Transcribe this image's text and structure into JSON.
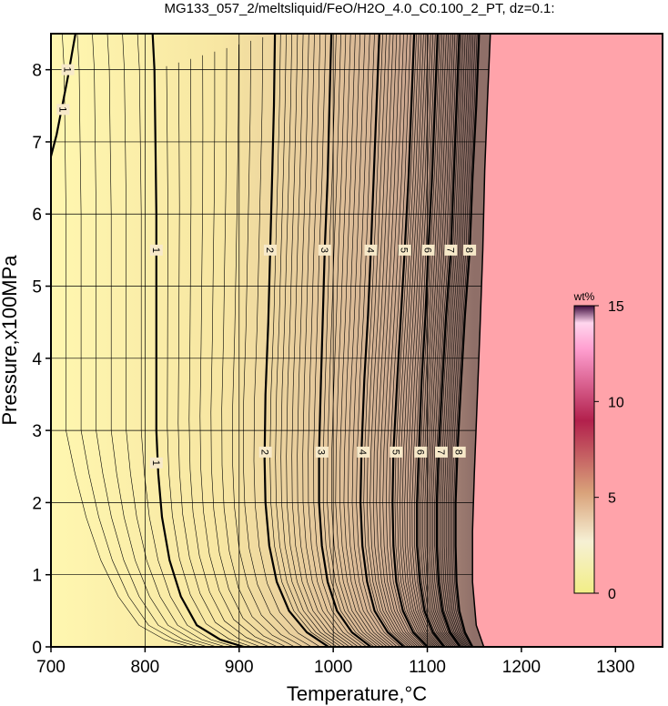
{
  "chart_data": {
    "type": "heatmap",
    "title": "MG133_057_2/meltsliquid/FeO/H2O_4.0_C0.100_2_PT, dz=0.1:",
    "xlabel": "Temperature,°C",
    "ylabel": "Pressure,x100MPa",
    "xlim": [
      700,
      1350
    ],
    "ylim": [
      0,
      8.5
    ],
    "x_ticks": [
      700,
      800,
      900,
      1000,
      1100,
      1200,
      1300
    ],
    "y_ticks": [
      0,
      1,
      2,
      3,
      4,
      5,
      6,
      7,
      8
    ],
    "grid": true,
    "contour_interval": 0.1,
    "major_contours": [
      {
        "level": "1",
        "label_positions": [
          [
            812,
            5.5
          ],
          [
            812,
            2.55
          ]
        ],
        "points": [
          [
            905,
            0
          ],
          [
            880,
            0.1
          ],
          [
            855,
            0.3
          ],
          [
            838,
            0.7
          ],
          [
            826,
            1.2
          ],
          [
            818,
            1.8
          ],
          [
            814,
            2.4
          ],
          [
            812,
            3.0
          ],
          [
            812,
            4.0
          ],
          [
            812,
            5.0
          ],
          [
            812,
            6.0
          ],
          [
            811,
            7.0
          ],
          [
            810,
            8.0
          ],
          [
            808,
            8.5
          ]
        ]
      },
      {
        "level": "2",
        "label_positions": [
          [
            933,
            5.5
          ],
          [
            928,
            2.7
          ]
        ],
        "points": [
          [
            995,
            0
          ],
          [
            972,
            0.2
          ],
          [
            953,
            0.5
          ],
          [
            940,
            0.9
          ],
          [
            932,
            1.4
          ],
          [
            928,
            2.0
          ],
          [
            927,
            2.6
          ],
          [
            928,
            3.5
          ],
          [
            931,
            4.5
          ],
          [
            933,
            5.5
          ],
          [
            935,
            6.5
          ],
          [
            937,
            7.5
          ],
          [
            938,
            8.5
          ]
        ]
      },
      {
        "level": "3",
        "label_positions": [
          [
            991,
            5.5
          ],
          [
            988,
            2.7
          ]
        ],
        "points": [
          [
            1040,
            0
          ],
          [
            1020,
            0.2
          ],
          [
            1004,
            0.5
          ],
          [
            994,
            0.9
          ],
          [
            988,
            1.4
          ],
          [
            985,
            2.0
          ],
          [
            985,
            2.7
          ],
          [
            987,
            3.7
          ],
          [
            989,
            4.6
          ],
          [
            991,
            5.5
          ],
          [
            994,
            6.5
          ],
          [
            996,
            7.5
          ],
          [
            998,
            8.5
          ]
        ]
      },
      {
        "level": "4",
        "label_positions": [
          [
            1040,
            5.5
          ],
          [
            1032,
            2.7
          ]
        ],
        "points": [
          [
            1075,
            0
          ],
          [
            1058,
            0.2
          ],
          [
            1044,
            0.5
          ],
          [
            1036,
            0.9
          ],
          [
            1031,
            1.4
          ],
          [
            1029,
            2.0
          ],
          [
            1030,
            2.7
          ],
          [
            1033,
            3.7
          ],
          [
            1037,
            4.6
          ],
          [
            1040,
            5.5
          ],
          [
            1043,
            6.5
          ],
          [
            1046,
            7.5
          ],
          [
            1049,
            8.5
          ]
        ]
      },
      {
        "level": "5",
        "label_positions": [
          [
            1076,
            5.5
          ],
          [
            1067,
            2.7
          ]
        ],
        "points": [
          [
            1100,
            0
          ],
          [
            1085,
            0.2
          ],
          [
            1074,
            0.5
          ],
          [
            1067,
            0.9
          ],
          [
            1064,
            1.4
          ],
          [
            1063,
            2.0
          ],
          [
            1064,
            2.7
          ],
          [
            1068,
            3.7
          ],
          [
            1072,
            4.6
          ],
          [
            1076,
            5.5
          ],
          [
            1080,
            6.5
          ],
          [
            1083,
            7.5
          ],
          [
            1086,
            8.5
          ]
        ]
      },
      {
        "level": "6",
        "label_positions": [
          [
            1101,
            5.5
          ],
          [
            1093,
            2.7
          ]
        ],
        "points": [
          [
            1118,
            0
          ],
          [
            1106,
            0.2
          ],
          [
            1097,
            0.5
          ],
          [
            1092,
            0.9
          ],
          [
            1089,
            1.4
          ],
          [
            1089,
            2.0
          ],
          [
            1091,
            2.7
          ],
          [
            1094,
            3.7
          ],
          [
            1098,
            4.6
          ],
          [
            1101,
            5.5
          ],
          [
            1105,
            6.5
          ],
          [
            1108,
            7.5
          ],
          [
            1111,
            8.5
          ]
        ]
      },
      {
        "level": "7",
        "label_positions": [
          [
            1125,
            5.5
          ],
          [
            1115,
            2.7
          ]
        ],
        "points": [
          [
            1135,
            0
          ],
          [
            1124,
            0.2
          ],
          [
            1116,
            0.5
          ],
          [
            1112,
            0.9
          ],
          [
            1110,
            1.4
          ],
          [
            1110,
            2.0
          ],
          [
            1112,
            2.7
          ],
          [
            1116,
            3.7
          ],
          [
            1120,
            4.6
          ],
          [
            1125,
            5.5
          ],
          [
            1128,
            6.5
          ],
          [
            1131,
            7.5
          ],
          [
            1134,
            8.5
          ]
        ]
      },
      {
        "level": "8",
        "label_positions": [
          [
            1145,
            5.5
          ],
          [
            1134,
            2.7
          ]
        ],
        "points": [
          [
            1148,
            0
          ],
          [
            1140,
            0.2
          ],
          [
            1134,
            0.5
          ],
          [
            1131,
            0.9
          ],
          [
            1130,
            1.4
          ],
          [
            1130,
            2.0
          ],
          [
            1132,
            2.7
          ],
          [
            1136,
            3.7
          ],
          [
            1140,
            4.6
          ],
          [
            1145,
            5.5
          ],
          [
            1148,
            6.5
          ],
          [
            1152,
            7.5
          ],
          [
            1155,
            8.5
          ]
        ]
      }
    ],
    "left_contour": {
      "level": "1",
      "label_positions": [
        [
          718,
          8.0
        ],
        [
          713,
          7.45
        ]
      ],
      "points": [
        [
          700,
          6.8
        ],
        [
          706,
          7.1
        ],
        [
          712,
          7.5
        ],
        [
          718,
          7.9
        ],
        [
          722,
          8.2
        ],
        [
          726,
          8.5
        ]
      ]
    },
    "liquidus_boundary": [
      [
        1160,
        0
      ],
      [
        1152,
        0.3
      ],
      [
        1148,
        0.9
      ],
      [
        1148,
        1.6
      ],
      [
        1150,
        2.4
      ],
      [
        1153,
        3.4
      ],
      [
        1156,
        4.4
      ],
      [
        1159,
        5.5
      ],
      [
        1161,
        6.6
      ],
      [
        1164,
        7.6
      ],
      [
        1167,
        8.5
      ]
    ],
    "colorbar": {
      "unit": "wt%",
      "min": 0,
      "max": 15,
      "ticks": [
        "0",
        "5",
        "10",
        "15"
      ],
      "tick_values": [
        0,
        5,
        10,
        15
      ]
    },
    "colors": {
      "low": "#fff7b0",
      "mid": "#c9a58e",
      "high": "#8f6f68",
      "above_liquidus": "#ffa3aa",
      "colorbar_top": "#3d0a3c",
      "colorbar_mid": "#b2204c",
      "colorbar_low_mid": "#d9a27a",
      "colorbar_bottom": "#f2ee86"
    }
  }
}
